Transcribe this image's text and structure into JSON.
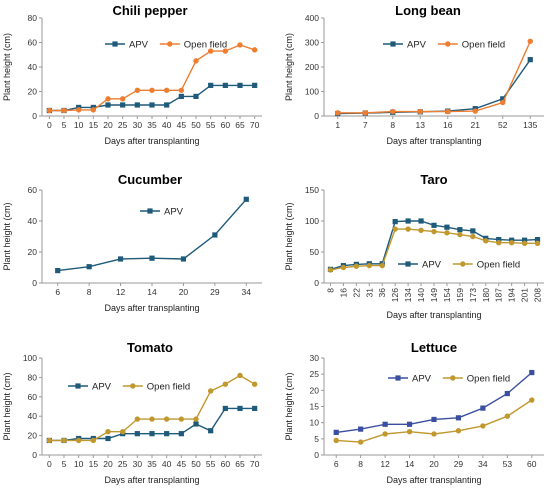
{
  "colors": {
    "apv": "#1f5a7a",
    "orange": "#ed7d31",
    "gold": "#c0982e",
    "axis": "#9a9a9a"
  },
  "chart_data": [
    {
      "type": "line",
      "title": "Chili pepper",
      "categories": [
        "0",
        "5",
        "10",
        "15",
        "20",
        "25",
        "30",
        "35",
        "40",
        "45",
        "50",
        "55",
        "60",
        "65",
        "70"
      ],
      "xlabel": "Days after transplanting",
      "ylabel": "Plant height (cm)",
      "ylim": [
        0,
        80
      ],
      "yticks": [
        "0",
        "20",
        "40",
        "60",
        "80"
      ],
      "legend": "top",
      "series": [
        {
          "name": "APV",
          "color": "#1f5a7a",
          "marker": "square",
          "values": [
            4.5,
            4.5,
            7,
            7,
            9,
            9,
            9,
            9,
            9,
            16,
            16,
            25,
            25,
            25,
            25
          ]
        },
        {
          "name": "Open field",
          "color": "#ed7d31",
          "marker": "circle",
          "values": [
            4.5,
            4.5,
            5,
            5,
            14,
            14,
            21,
            21,
            21,
            21,
            45,
            53,
            53,
            58,
            54
          ]
        }
      ]
    },
    {
      "type": "line",
      "title": "Long bean",
      "categories": [
        "1",
        "7",
        "8",
        "13",
        "16",
        "21",
        "52",
        "135"
      ],
      "xlabel": "Days after transplanting",
      "ylabel": "Plant height (cm)",
      "ylim": [
        0,
        400
      ],
      "yticks": [
        "0",
        "100",
        "200",
        "300",
        "400"
      ],
      "legend": "top",
      "series": [
        {
          "name": "APV",
          "color": "#1f5a7a",
          "marker": "square",
          "values": [
            10,
            12,
            15,
            17,
            20,
            30,
            70,
            230
          ]
        },
        {
          "name": "Open field",
          "color": "#ed7d31",
          "marker": "circle",
          "values": [
            13,
            13,
            18,
            18,
            18,
            20,
            55,
            305
          ]
        }
      ]
    },
    {
      "type": "line",
      "title": "Cucumber",
      "categories": [
        "6",
        "8",
        "12",
        "14",
        "20",
        "29",
        "34"
      ],
      "xlabel": "Days after transplanting",
      "ylabel": "Plant height (cm)",
      "ylim": [
        0,
        60
      ],
      "yticks": [
        "0",
        "20",
        "40",
        "60"
      ],
      "legend": "top",
      "series": [
        {
          "name": "APV",
          "color": "#1f5a7a",
          "marker": "square",
          "values": [
            8,
            10.5,
            15.5,
            16,
            15.5,
            31,
            54
          ]
        }
      ]
    },
    {
      "type": "line",
      "title": "Taro",
      "categories": [
        "8",
        "16",
        "22",
        "31",
        "36",
        "126",
        "134",
        "140",
        "149",
        "154",
        "159",
        "173",
        "180",
        "187",
        "194",
        "201",
        "208"
      ],
      "xlabel": "Days after transplanting",
      "ylabel": "Plant height (cm)",
      "ylim": [
        0,
        150
      ],
      "yticks": [
        "0",
        "50",
        "100",
        "150"
      ],
      "legend": "bottom",
      "series": [
        {
          "name": "APV",
          "color": "#1f5a7a",
          "marker": "square",
          "values": [
            22,
            28,
            30,
            31,
            31,
            99,
            100,
            100,
            93,
            90,
            86,
            84,
            72,
            70,
            69,
            69,
            70
          ]
        },
        {
          "name": "Open field",
          "color": "#c0982e",
          "marker": "circle",
          "values": [
            21,
            25,
            27,
            28,
            28,
            87,
            87,
            85,
            83,
            81,
            78,
            75,
            68,
            65,
            65,
            64,
            64
          ]
        }
      ]
    },
    {
      "type": "line",
      "title": "Tomato",
      "categories": [
        "0",
        "5",
        "10",
        "15",
        "20",
        "25",
        "30",
        "35",
        "40",
        "45",
        "50",
        "55",
        "60",
        "65",
        "70"
      ],
      "xlabel": "Days after transplanting",
      "ylabel": "Plant height (cm)",
      "ylim": [
        0,
        100
      ],
      "yticks": [
        "0",
        "20",
        "40",
        "60",
        "80",
        "100"
      ],
      "legend": "top",
      "series": [
        {
          "name": "APV",
          "color": "#1f5a7a",
          "marker": "square",
          "values": [
            15,
            15,
            17,
            17,
            17,
            22,
            22,
            22,
            22,
            22,
            32,
            25,
            48,
            48,
            48
          ]
        },
        {
          "name": "Open field",
          "color": "#c0982e",
          "marker": "circle",
          "values": [
            15,
            15,
            15,
            15,
            24,
            24,
            37,
            37,
            37,
            37,
            37,
            66,
            73,
            82,
            73
          ]
        }
      ]
    },
    {
      "type": "line",
      "title": "Lettuce",
      "categories": [
        "6",
        "8",
        "12",
        "14",
        "20",
        "29",
        "34",
        "53",
        "60"
      ],
      "xlabel": "Days after transplanting",
      "ylabel": "Plant height (cm)",
      "ylim": [
        0,
        30
      ],
      "yticks": [
        "0",
        "5",
        "10",
        "15",
        "20",
        "25",
        "30"
      ],
      "legend": "top",
      "series": [
        {
          "name": "APV",
          "color": "#3a4fa0",
          "marker": "square",
          "values": [
            7,
            8,
            9.5,
            9.5,
            11,
            11.5,
            14.5,
            19,
            25.5
          ]
        },
        {
          "name": "Open field",
          "color": "#c0982e",
          "marker": "circle",
          "values": [
            4.5,
            4,
            6.5,
            7.2,
            6.5,
            7.5,
            9,
            12,
            17
          ]
        }
      ]
    }
  ]
}
